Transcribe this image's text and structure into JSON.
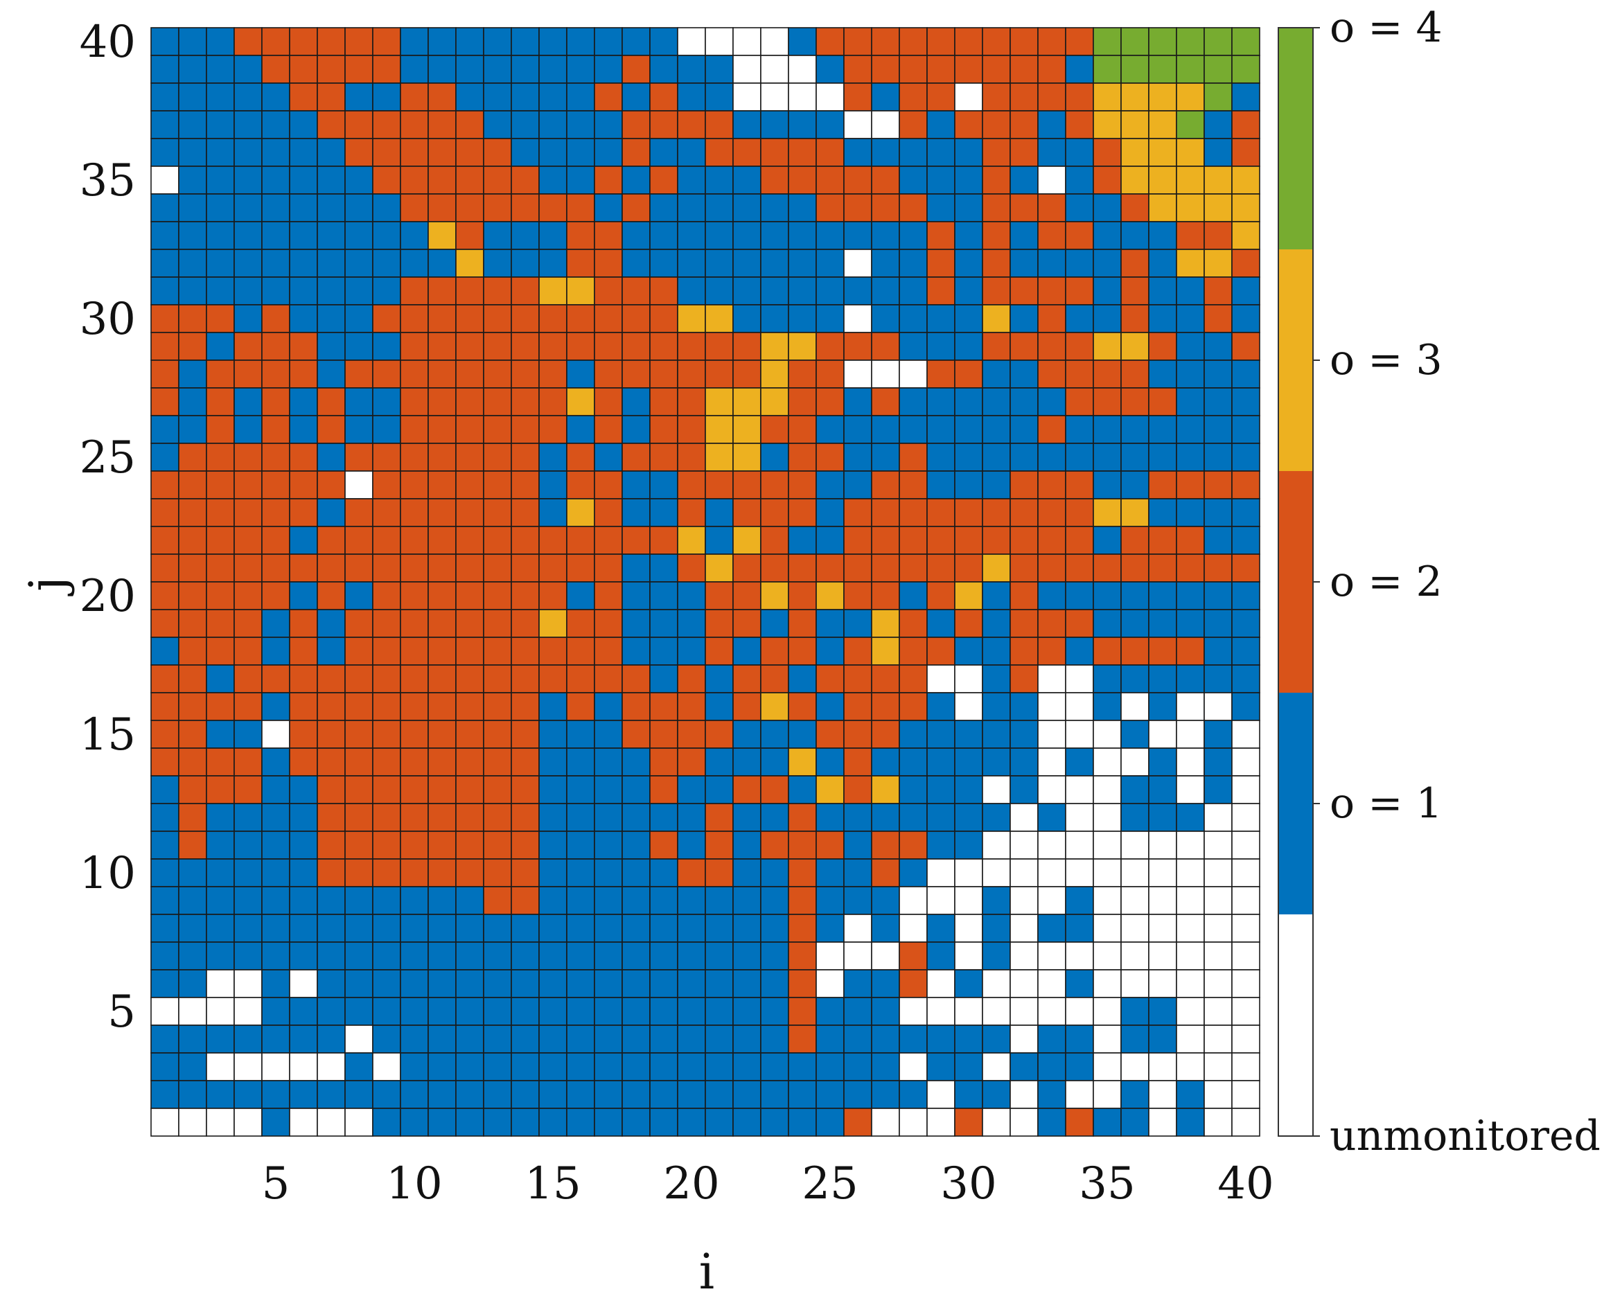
{
  "chart_data": {
    "type": "heatmap",
    "title": "",
    "xlabel": "i",
    "ylabel": "j",
    "xlim": [
      1,
      40
    ],
    "ylim": [
      1,
      40
    ],
    "xticks": [
      5,
      10,
      15,
      20,
      25,
      30,
      35,
      40
    ],
    "yticks": [
      5,
      10,
      15,
      20,
      25,
      30,
      35,
      40
    ],
    "grid": true,
    "value_encoding": {
      "0": "unmonitored",
      "1": "o = 1",
      "2": "o = 2",
      "3": "o = 3",
      "4": "o = 4"
    },
    "colorbar": {
      "position": "right",
      "levels": [
        {
          "value": 0,
          "label": "unmonitored",
          "color": "#ffffff"
        },
        {
          "value": 1,
          "label": "o = 1",
          "color": "#0072bd"
        },
        {
          "value": 2,
          "label": "o = 2",
          "color": "#d95319"
        },
        {
          "value": 3,
          "label": "o = 3",
          "color": "#edb120"
        },
        {
          "value": 4,
          "label": "o = 4",
          "color": "#77ac30"
        }
      ]
    },
    "grid_rows_top_to_bottom_j40_to_j1": [
      "1112222221111111111000012222222222444444",
      "1111222221111111121110001222222221444444",
      "1111122112211111212110000212202222333341",
      "1111112222221111122221111002122212333412",
      "1111111222222111121122222111112211233312",
      "0111111122222211212111222221112101233333",
      "1111111112222222121111112222112221123333",
      "1111111111321112211111111111212122111223",
      "1111111111131112211111111011212111121332",
      "1111111112222233222111111111212222121121",
      "2221211122222222222331111011113121121121",
      "2212221112222222222222332221112222332112",
      "2122221222222221222222322000221122221111",
      "2121212112222223212233322121111112222111",
      "1121212112222221212233221111111121111111",
      "1222221222222212122233122112111111111111",
      "2222222022222212211222221122111222112222",
      "2222221222222213211212221222222222331111",
      "2222212222222222222313211222222222122211",
      "2222222222222222211232222222223222222222",
      "2222212122222221211122323221231211111111",
      "2222121222222232211122121132121222111111",
      "1222121222222222211121221232211221222211",
      "2212222222222222221212212222001200111111",
      "2222122222222212122212321222101100101001",
      "2211022222222211122221112221111100010010",
      "2222122222222211112211131211111101001010",
      "1222112222222211112112213231110100011010",
      "1211112222222211111121121111111010011100",
      "1211112222222211112121222122110000000000",
      "1111112222222211111221121121000000000000",
      "1111111111112211111111121110001001000000",
      "1111111111111111111111121010101011000000",
      "1111111111111111111111120002101000000000",
      "1100101111111111111111120112010001000000",
      "0000111111111111111111121110000000011000",
      "1111111011111111111111121111111011011000",
      "1100000101111111111111111110110111000000",
      "1111111111111111111111111111011010010100",
      "0000100011111111111111111200020012110100"
    ]
  }
}
